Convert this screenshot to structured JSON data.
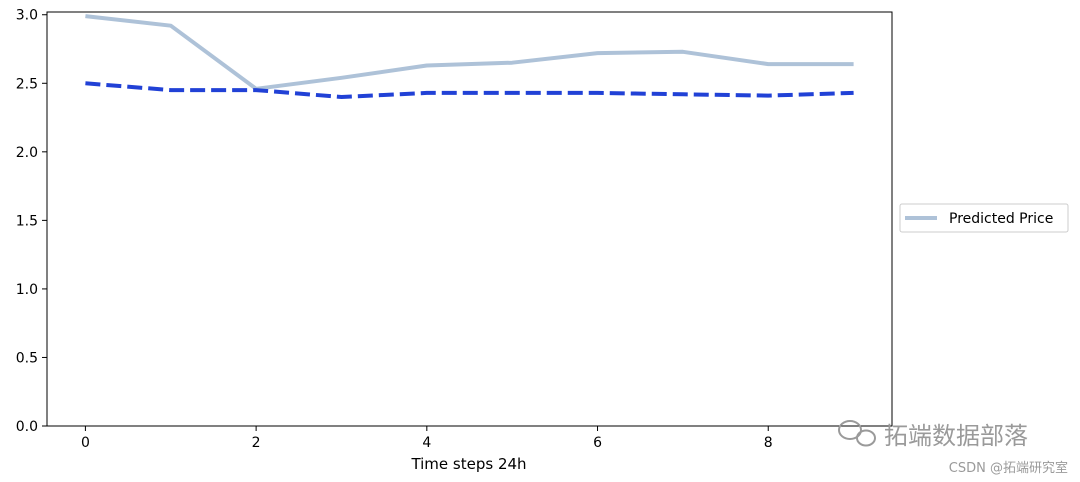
{
  "chart_data": {
    "type": "line",
    "xlabel": "Time steps 24h",
    "ylabel": "",
    "x": [
      0,
      1,
      2,
      3,
      4,
      5,
      6,
      7,
      8,
      9
    ],
    "xlim": [
      -0.45,
      9.45
    ],
    "ylim": [
      0.0,
      3.02
    ],
    "x_ticks": [
      "0",
      "2",
      "4",
      "6",
      "8"
    ],
    "y_ticks": [
      "0.0",
      "0.5",
      "1.0",
      "1.5",
      "2.0",
      "2.5",
      "3.0"
    ],
    "grid": false,
    "legend_placement": "center-right-outside",
    "series": [
      {
        "name": "Predicted Price",
        "style": "solid",
        "color": "#aec2d8",
        "values": [
          2.99,
          2.92,
          2.46,
          2.54,
          2.63,
          2.65,
          2.72,
          2.73,
          2.64,
          2.64
        ]
      },
      {
        "name": "",
        "style": "dashed",
        "color": "#2141d6",
        "values": [
          2.5,
          2.45,
          2.45,
          2.4,
          2.43,
          2.43,
          2.43,
          2.42,
          2.41,
          2.43
        ]
      }
    ]
  },
  "watermark": {
    "brand": "拓端数据部落",
    "credit": "CSDN @拓端研究室",
    "icon": "wechat-icon"
  }
}
